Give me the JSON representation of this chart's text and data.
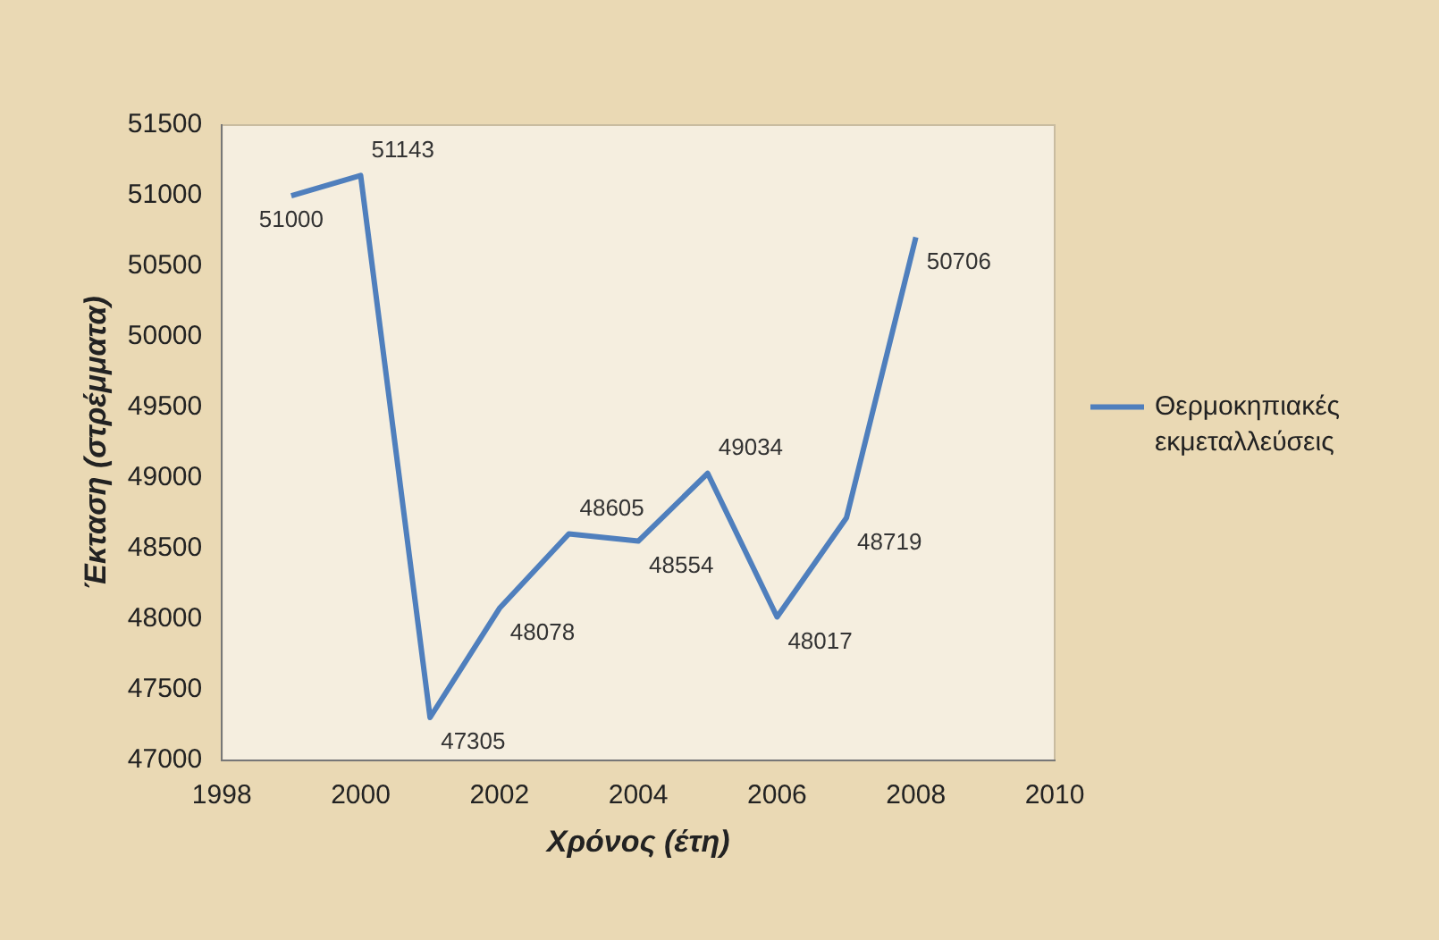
{
  "chart_data": {
    "type": "line",
    "xlabel": "Χρόνος (έτη)",
    "ylabel": "Έκταση (στρέμματα)",
    "x": [
      1999,
      2000,
      2001,
      2002,
      2003,
      2004,
      2005,
      2006,
      2007,
      2008
    ],
    "series": [
      {
        "name": "Θερμοκηπιακές εκμεταλλεύσεις",
        "color": "#4f7fbd",
        "values": [
          51000,
          51143,
          47305,
          48078,
          48605,
          48554,
          49034,
          48017,
          48719,
          50706
        ]
      }
    ],
    "xlim": [
      1998,
      2010
    ],
    "xticks": [
      1998,
      2000,
      2002,
      2004,
      2006,
      2008,
      2010
    ],
    "ylim": [
      47000,
      51500
    ],
    "yticks": [
      47000,
      47500,
      48000,
      48500,
      49000,
      49500,
      50000,
      50500,
      51000,
      51500
    ],
    "grid": false,
    "legend": "right",
    "marker": "none",
    "line_style": "solid",
    "data_labels": true
  }
}
